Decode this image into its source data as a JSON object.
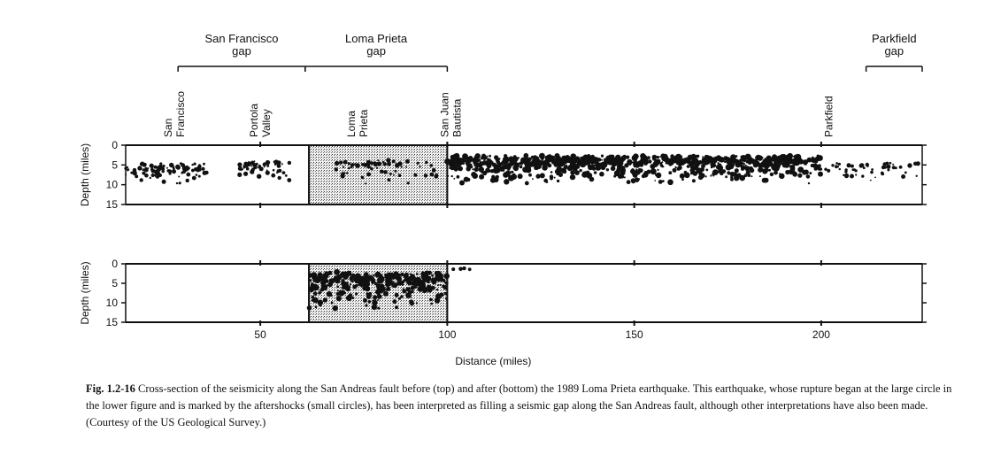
{
  "chart_data": [
    {
      "type": "scatter",
      "panel": "before (top)",
      "xlim": [
        14,
        227
      ],
      "ylim": [
        0,
        15
      ],
      "y_inverted": true,
      "ylabel": "Depth (miles)",
      "yticks": [
        "0",
        "5",
        "10",
        "15"
      ],
      "gap_labels": [
        {
          "name": "San Francisco\ngap",
          "x_start": 28,
          "x_end": 62
        },
        {
          "name": "Loma Prieta\ngap",
          "x_start": 62,
          "x_end": 100
        },
        {
          "name": "Parkfield\ngap",
          "x_start": 212,
          "x_end": 227
        }
      ],
      "town_labels": [
        {
          "name": "San\nFrancisco",
          "x": 27
        },
        {
          "name": "Portola\nValley",
          "x": 50
        },
        {
          "name": "Loma\nPrieta",
          "x": 76
        },
        {
          "name": "San Juan\nBautista",
          "x": 101
        },
        {
          "name": "Parkfield",
          "x": 202
        }
      ],
      "shaded_region": {
        "x": [
          63,
          100
        ],
        "y": [
          0,
          15
        ]
      },
      "clusters": [
        {
          "x": [
            14,
            36
          ],
          "y": [
            3,
            11
          ],
          "density": 0.5
        },
        {
          "x": [
            44,
            58
          ],
          "y": [
            3,
            9
          ],
          "density": 0.5
        },
        {
          "x": [
            70,
            98
          ],
          "y": [
            2,
            11
          ],
          "density": 0.25
        },
        {
          "x": [
            100,
            200
          ],
          "y": [
            1,
            10
          ],
          "density": 1.0
        },
        {
          "x": [
            200,
            227
          ],
          "y": [
            3,
            10
          ],
          "density": 0.2
        }
      ]
    },
    {
      "type": "scatter",
      "panel": "after (bottom)",
      "xlim": [
        14,
        227
      ],
      "ylim": [
        0,
        15
      ],
      "y_inverted": true,
      "ylabel": "Depth (miles)",
      "xlabel": "Distance (miles)",
      "xticks": [
        "50",
        "100",
        "150",
        "200"
      ],
      "yticks": [
        "0",
        "5",
        "10",
        "15"
      ],
      "shaded_region": {
        "x": [
          63,
          100
        ],
        "y": [
          0,
          15
        ]
      },
      "clusters": [
        {
          "x": [
            63,
            100
          ],
          "y": [
            0,
            12
          ],
          "density": 1.0
        },
        {
          "x": [
            101,
            106
          ],
          "y": [
            0,
            4
          ],
          "density": 0.1
        }
      ]
    }
  ],
  "caption": {
    "figure_number": "Fig. 1.2-16",
    "text": "Cross-section of the seismicity along the San Andreas fault before (top) and after (bottom) the 1989 Loma Prieta earthquake. This earthquake, whose rupture began at the large circle in the lower figure and is marked by the aftershocks (small circles), has been interpreted as filling a seismic gap along the San Andreas fault, although other interpretations have also been made. (Courtesy of the US Geological Survey.)"
  },
  "colors": {
    "ink": "#111111",
    "shade": "#cfcfcf"
  }
}
